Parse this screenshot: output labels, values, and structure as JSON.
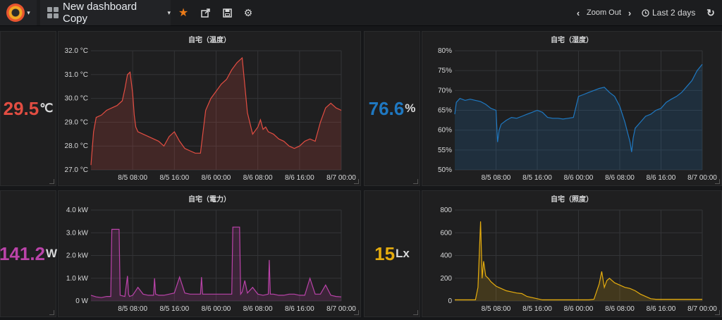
{
  "navbar": {
    "dashboard_title": "New dashboard Copy",
    "zoom_label": "Zoom Out",
    "time_range": "Last 2 days"
  },
  "panels": [
    {
      "stat": {
        "value": "29.5",
        "unit": "℃",
        "color": "#e24d42"
      },
      "chart_data": {
        "type": "line",
        "title": "自宅（温度）",
        "color": "#e24d42",
        "x_ticks": [
          "8/5 08:00",
          "8/5 16:00",
          "8/6 00:00",
          "8/6 08:00",
          "8/6 16:00",
          "8/7 00:00"
        ],
        "y_ticks": [
          "27.0 °C",
          "28.0 °C",
          "29.0 °C",
          "30.0 °C",
          "31.0 °C",
          "32.0 °C"
        ],
        "ylim": [
          27,
          32
        ],
        "x": [
          0,
          0.5,
          1,
          2,
          3,
          4,
          5,
          6,
          6.5,
          7,
          7.5,
          8,
          8.3,
          8.6,
          9,
          10,
          11,
          12,
          13,
          14,
          15,
          16,
          17,
          18,
          19,
          20,
          21,
          22,
          23,
          24,
          25,
          26,
          27,
          28,
          29,
          30,
          31,
          32,
          32.5,
          33,
          33.5,
          34,
          35,
          36,
          37,
          38,
          39,
          40,
          41,
          42,
          43,
          44,
          45,
          46,
          47,
          48
        ],
        "series": [
          {
            "values": [
              27.2,
              28.6,
              29.2,
              29.3,
              29.5,
              29.6,
              29.7,
              29.9,
              30.4,
              31.0,
              31.1,
              30.2,
              29.3,
              28.8,
              28.6,
              28.5,
              28.4,
              28.3,
              28.2,
              28.0,
              28.4,
              28.6,
              28.2,
              27.9,
              27.8,
              27.7,
              27.7,
              29.5,
              30.0,
              30.3,
              30.6,
              30.8,
              31.2,
              31.5,
              31.7,
              29.4,
              28.5,
              28.8,
              29.1,
              28.7,
              28.8,
              28.6,
              28.5,
              28.3,
              28.2,
              28.0,
              27.9,
              28.0,
              28.2,
              28.3,
              28.2,
              29.0,
              29.6,
              29.8,
              29.6,
              29.5
            ]
          }
        ]
      }
    },
    {
      "stat": {
        "value": "76.6",
        "unit": "%",
        "color": "#1f78c1"
      },
      "chart_data": {
        "type": "line",
        "title": "自宅（湿度）",
        "color": "#1f78c1",
        "x_ticks": [
          "8/5 08:00",
          "8/5 16:00",
          "8/6 00:00",
          "8/6 08:00",
          "8/6 16:00",
          "8/7 00:00"
        ],
        "y_ticks": [
          "50%",
          "55%",
          "60%",
          "65%",
          "70%",
          "75%",
          "80%"
        ],
        "ylim": [
          50,
          80
        ],
        "x": [
          0,
          0.3,
          1,
          2,
          3,
          4,
          5,
          6,
          7,
          8,
          8.3,
          8.6,
          9,
          10,
          11,
          12,
          13,
          14,
          15,
          16,
          17,
          18,
          19,
          20,
          21,
          22,
          23,
          24,
          25,
          26,
          27,
          28,
          29,
          30,
          31,
          32,
          33,
          34,
          34.3,
          34.6,
          35,
          36,
          37,
          38,
          39,
          40,
          41,
          42,
          43,
          44,
          45,
          46,
          47,
          48
        ],
        "series": [
          {
            "values": [
              64,
              67,
              68,
              67.5,
              67.8,
              67.5,
              67.2,
              66.5,
              65.5,
              65,
              57,
              60,
              61.5,
              62.5,
              63.2,
              63.0,
              63.5,
              64.0,
              64.5,
              65,
              64.5,
              63.2,
              63.0,
              63.0,
              62.8,
              63.0,
              63.2,
              68.5,
              69.0,
              69.5,
              70.0,
              70.5,
              70.8,
              69.5,
              68.5,
              66.0,
              62.0,
              57.0,
              54.5,
              58.0,
              60.5,
              62.0,
              63.5,
              64.0,
              65.0,
              65.5,
              67.0,
              67.8,
              68.5,
              69.5,
              71.0,
              72.5,
              75.0,
              76.6
            ]
          }
        ]
      }
    },
    {
      "stat": {
        "value": "141.2",
        "unit": "W",
        "color": "#ba43a9"
      },
      "chart_data": {
        "type": "line",
        "title": "自宅（電力）",
        "color": "#ba43a9",
        "x_ticks": [
          "8/5 08:00",
          "8/5 16:00",
          "8/6 00:00",
          "8/6 08:00",
          "8/6 16:00",
          "8/7 00:00"
        ],
        "y_ticks": [
          "0 W",
          "1.0 kW",
          "2.0 kW",
          "3.0 kW",
          "4.0 kW"
        ],
        "ylim": [
          0,
          4000
        ],
        "x": [
          0,
          1,
          2,
          3,
          3.8,
          4.0,
          5.4,
          5.6,
          6.5,
          7,
          7.2,
          7.4,
          8,
          9,
          10,
          11,
          12,
          12.2,
          12.4,
          13,
          14,
          15,
          16,
          17,
          18,
          19,
          20,
          21,
          21.2,
          21.4,
          22,
          24,
          27,
          27.2,
          28.5,
          28.7,
          29,
          29.5,
          30,
          31,
          32,
          33,
          34,
          34.2,
          34.4,
          35,
          36,
          37,
          38,
          39,
          40,
          41,
          42,
          43,
          44,
          45,
          46,
          47,
          48
        ],
        "series": [
          {
            "values": [
              250,
              180,
              150,
              200,
              200,
              3150,
              3150,
              250,
              200,
              1100,
              300,
              200,
              250,
              600,
              300,
              250,
              250,
              1000,
              300,
              250,
              250,
              300,
              350,
              1050,
              350,
              300,
              300,
              300,
              1050,
              300,
              300,
              300,
              300,
              3250,
              3250,
              300,
              400,
              900,
              350,
              600,
              300,
              250,
              300,
              1800,
              300,
              300,
              250,
              250,
              300,
              300,
              250,
              250,
              1000,
              300,
              300,
              700,
              250,
              200,
              180
            ]
          }
        ]
      }
    },
    {
      "stat": {
        "value": "15",
        "unit": "Lx",
        "color": "#e5ac0e"
      },
      "chart_data": {
        "type": "line",
        "title": "自宅（照度）",
        "color": "#e5ac0e",
        "x_ticks": [
          "8/5 08:00",
          "8/5 16:00",
          "8/6 00:00",
          "8/6 08:00",
          "8/6 16:00",
          "8/7 00:00"
        ],
        "y_ticks": [
          "0",
          "200",
          "400",
          "600",
          "800"
        ],
        "ylim": [
          0,
          800
        ],
        "x": [
          0,
          1,
          2,
          3,
          4,
          4.5,
          5,
          5.3,
          5.6,
          6,
          6.5,
          7,
          8,
          9,
          10,
          11,
          12,
          13,
          14,
          15,
          16,
          17,
          18,
          19,
          20,
          21,
          22,
          23,
          24,
          25,
          26,
          27,
          28,
          28.5,
          29,
          29.5,
          30,
          31,
          32,
          33,
          34,
          35,
          36,
          37,
          38,
          39,
          40,
          41,
          42,
          43,
          44,
          45,
          46,
          47,
          48
        ],
        "series": [
          {
            "values": [
              10,
              10,
              10,
              10,
              10,
              120,
              700,
              200,
              350,
              220,
              200,
              170,
              130,
              110,
              90,
              80,
              70,
              65,
              40,
              30,
              20,
              10,
              10,
              10,
              10,
              10,
              10,
              10,
              10,
              10,
              10,
              15,
              150,
              260,
              120,
              180,
              200,
              160,
              140,
              120,
              110,
              90,
              60,
              40,
              20,
              15,
              15,
              15,
              15,
              15,
              15,
              15,
              15,
              15,
              15
            ]
          }
        ]
      }
    }
  ]
}
